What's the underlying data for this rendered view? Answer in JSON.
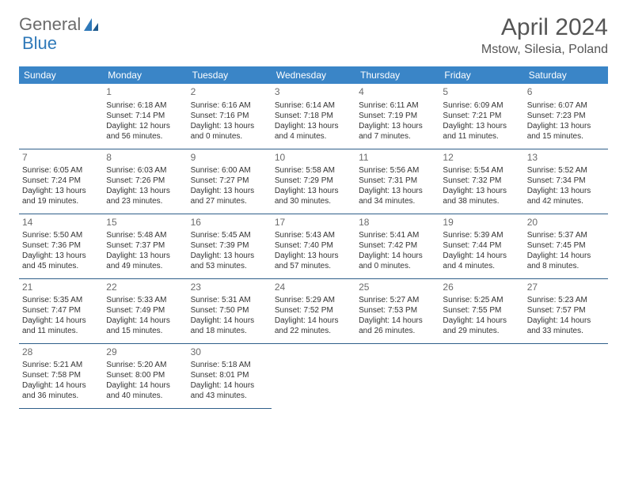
{
  "brand": {
    "part1": "General",
    "part2": "Blue"
  },
  "title": "April 2024",
  "location": "Mstow, Silesia, Poland",
  "colors": {
    "header_bg": "#3a85c7",
    "border": "#2f5f8a",
    "logo_gray": "#6b6b6b",
    "logo_blue": "#2f79b9",
    "text": "#333333"
  },
  "dow": [
    "Sunday",
    "Monday",
    "Tuesday",
    "Wednesday",
    "Thursday",
    "Friday",
    "Saturday"
  ],
  "weeks": [
    [
      null,
      {
        "n": "1",
        "sr": "6:18 AM",
        "ss": "7:14 PM",
        "dl": "12 hours and 56 minutes."
      },
      {
        "n": "2",
        "sr": "6:16 AM",
        "ss": "7:16 PM",
        "dl": "13 hours and 0 minutes."
      },
      {
        "n": "3",
        "sr": "6:14 AM",
        "ss": "7:18 PM",
        "dl": "13 hours and 4 minutes."
      },
      {
        "n": "4",
        "sr": "6:11 AM",
        "ss": "7:19 PM",
        "dl": "13 hours and 7 minutes."
      },
      {
        "n": "5",
        "sr": "6:09 AM",
        "ss": "7:21 PM",
        "dl": "13 hours and 11 minutes."
      },
      {
        "n": "6",
        "sr": "6:07 AM",
        "ss": "7:23 PM",
        "dl": "13 hours and 15 minutes."
      }
    ],
    [
      {
        "n": "7",
        "sr": "6:05 AM",
        "ss": "7:24 PM",
        "dl": "13 hours and 19 minutes."
      },
      {
        "n": "8",
        "sr": "6:03 AM",
        "ss": "7:26 PM",
        "dl": "13 hours and 23 minutes."
      },
      {
        "n": "9",
        "sr": "6:00 AM",
        "ss": "7:27 PM",
        "dl": "13 hours and 27 minutes."
      },
      {
        "n": "10",
        "sr": "5:58 AM",
        "ss": "7:29 PM",
        "dl": "13 hours and 30 minutes."
      },
      {
        "n": "11",
        "sr": "5:56 AM",
        "ss": "7:31 PM",
        "dl": "13 hours and 34 minutes."
      },
      {
        "n": "12",
        "sr": "5:54 AM",
        "ss": "7:32 PM",
        "dl": "13 hours and 38 minutes."
      },
      {
        "n": "13",
        "sr": "5:52 AM",
        "ss": "7:34 PM",
        "dl": "13 hours and 42 minutes."
      }
    ],
    [
      {
        "n": "14",
        "sr": "5:50 AM",
        "ss": "7:36 PM",
        "dl": "13 hours and 45 minutes."
      },
      {
        "n": "15",
        "sr": "5:48 AM",
        "ss": "7:37 PM",
        "dl": "13 hours and 49 minutes."
      },
      {
        "n": "16",
        "sr": "5:45 AM",
        "ss": "7:39 PM",
        "dl": "13 hours and 53 minutes."
      },
      {
        "n": "17",
        "sr": "5:43 AM",
        "ss": "7:40 PM",
        "dl": "13 hours and 57 minutes."
      },
      {
        "n": "18",
        "sr": "5:41 AM",
        "ss": "7:42 PM",
        "dl": "14 hours and 0 minutes."
      },
      {
        "n": "19",
        "sr": "5:39 AM",
        "ss": "7:44 PM",
        "dl": "14 hours and 4 minutes."
      },
      {
        "n": "20",
        "sr": "5:37 AM",
        "ss": "7:45 PM",
        "dl": "14 hours and 8 minutes."
      }
    ],
    [
      {
        "n": "21",
        "sr": "5:35 AM",
        "ss": "7:47 PM",
        "dl": "14 hours and 11 minutes."
      },
      {
        "n": "22",
        "sr": "5:33 AM",
        "ss": "7:49 PM",
        "dl": "14 hours and 15 minutes."
      },
      {
        "n": "23",
        "sr": "5:31 AM",
        "ss": "7:50 PM",
        "dl": "14 hours and 18 minutes."
      },
      {
        "n": "24",
        "sr": "5:29 AM",
        "ss": "7:52 PM",
        "dl": "14 hours and 22 minutes."
      },
      {
        "n": "25",
        "sr": "5:27 AM",
        "ss": "7:53 PM",
        "dl": "14 hours and 26 minutes."
      },
      {
        "n": "26",
        "sr": "5:25 AM",
        "ss": "7:55 PM",
        "dl": "14 hours and 29 minutes."
      },
      {
        "n": "27",
        "sr": "5:23 AM",
        "ss": "7:57 PM",
        "dl": "14 hours and 33 minutes."
      }
    ],
    [
      {
        "n": "28",
        "sr": "5:21 AM",
        "ss": "7:58 PM",
        "dl": "14 hours and 36 minutes."
      },
      {
        "n": "29",
        "sr": "5:20 AM",
        "ss": "8:00 PM",
        "dl": "14 hours and 40 minutes."
      },
      {
        "n": "30",
        "sr": "5:18 AM",
        "ss": "8:01 PM",
        "dl": "14 hours and 43 minutes."
      },
      null,
      null,
      null,
      null
    ]
  ],
  "labels": {
    "sunrise": "Sunrise: ",
    "sunset": "Sunset: ",
    "daylight": "Daylight: "
  }
}
